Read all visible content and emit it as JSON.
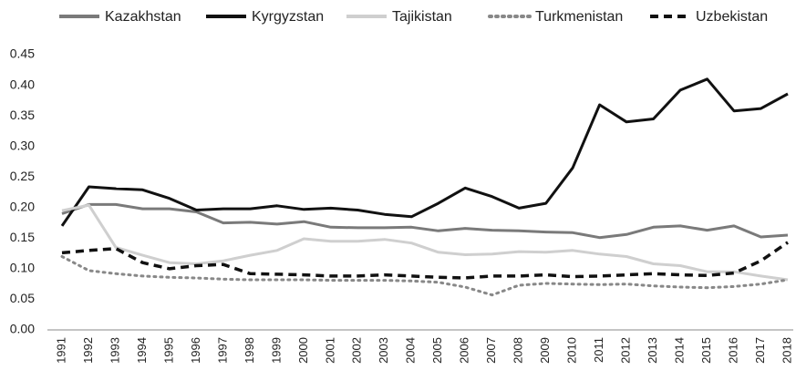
{
  "chart_data": {
    "type": "line",
    "categories": [
      "1991",
      "1992",
      "1993",
      "1994",
      "1995",
      "1996",
      "1997",
      "1998",
      "1999",
      "2000",
      "2001",
      "2002",
      "2003",
      "2004",
      "2005",
      "2006",
      "2007",
      "2008",
      "2009",
      "2010",
      "2011",
      "2012",
      "2013",
      "2014",
      "2015",
      "2016",
      "2017",
      "2018"
    ],
    "ylim": [
      0,
      0.45
    ],
    "yticks": [
      {
        "value": 0,
        "label": "0.00"
      },
      0.05,
      {
        "value": 0.1,
        "label": "0.10"
      },
      0.15,
      {
        "value": 0.2,
        "label": "0.20"
      },
      0.25,
      {
        "value": 0.3,
        "label": "0.30"
      },
      0.35,
      {
        "value": 0.4,
        "label": "0.40"
      },
      0.45
    ],
    "grid": false,
    "legend": "top",
    "series": [
      {
        "name": "Kazakhstan",
        "color": "#7a7a7a",
        "dash": "solid",
        "values": [
          0.19,
          0.205,
          0.205,
          0.198,
          0.198,
          0.193,
          0.175,
          0.176,
          0.173,
          0.177,
          0.168,
          0.167,
          0.167,
          0.168,
          0.162,
          0.166,
          0.163,
          0.162,
          0.16,
          0.159,
          0.151,
          0.156,
          0.168,
          0.17,
          0.163,
          0.17,
          0.152,
          0.155
        ]
      },
      {
        "name": "Kyrgyzstan",
        "color": "#111111",
        "dash": "solid",
        "values": [
          0.17,
          0.234,
          0.231,
          0.229,
          0.215,
          0.196,
          0.198,
          0.198,
          0.203,
          0.197,
          0.199,
          0.196,
          0.189,
          0.185,
          0.207,
          0.232,
          0.218,
          0.199,
          0.207,
          0.265,
          0.368,
          0.34,
          0.345,
          0.392,
          0.41,
          0.358,
          0.362,
          0.386
        ]
      },
      {
        "name": "Tajikistan",
        "color": "#cfcfcf",
        "dash": "solid",
        "values": [
          0.195,
          0.204,
          0.135,
          0.122,
          0.11,
          0.108,
          0.113,
          0.122,
          0.13,
          0.149,
          0.145,
          0.145,
          0.148,
          0.142,
          0.127,
          0.123,
          0.124,
          0.128,
          0.127,
          0.13,
          0.124,
          0.12,
          0.108,
          0.105,
          0.095,
          0.095,
          0.088,
          0.082
        ]
      },
      {
        "name": "Turkmenistan",
        "color": "#888888",
        "dash": "dotted",
        "values": [
          0.12,
          0.097,
          0.092,
          0.088,
          0.086,
          0.085,
          0.083,
          0.082,
          0.082,
          0.082,
          0.081,
          0.081,
          0.081,
          0.08,
          0.078,
          0.07,
          0.057,
          0.073,
          0.076,
          0.075,
          0.074,
          0.075,
          0.072,
          0.07,
          0.069,
          0.071,
          0.075,
          0.082
        ]
      },
      {
        "name": "Uzbekistan",
        "color": "#111111",
        "dash": "dashed",
        "values": [
          0.126,
          0.13,
          0.133,
          0.11,
          0.1,
          0.105,
          0.107,
          0.092,
          0.091,
          0.09,
          0.088,
          0.088,
          0.09,
          0.088,
          0.086,
          0.085,
          0.088,
          0.088,
          0.09,
          0.087,
          0.088,
          0.09,
          0.092,
          0.09,
          0.089,
          0.093,
          0.113,
          0.143
        ]
      }
    ]
  }
}
